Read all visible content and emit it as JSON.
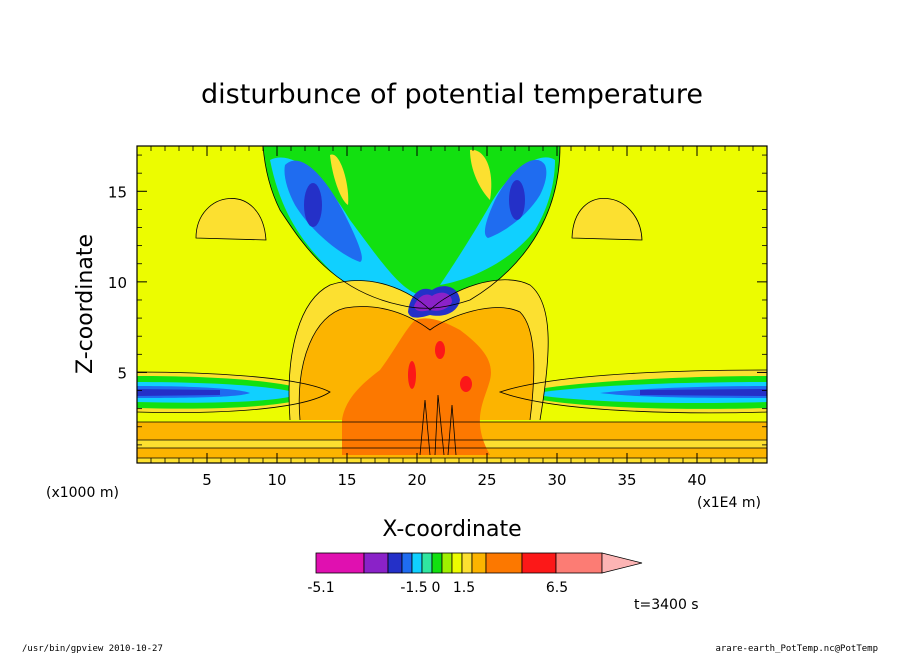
{
  "chart_data": {
    "type": "heatmap",
    "title": "disturbunce of potential temperature",
    "xlabel": "X-coordinate",
    "ylabel": "Z-coordinate",
    "x_units": "(x1000 m)",
    "x_multiplier": "(x1E4 m)",
    "xlim": [
      0,
      45
    ],
    "ylim": [
      0,
      17.5
    ],
    "xticks": [
      5,
      10,
      15,
      20,
      25,
      30,
      35,
      40
    ],
    "yticks": [
      5,
      10,
      15
    ],
    "time_label": "t=3400 s",
    "colorbar": {
      "tick_labels": [
        "-5.1",
        "-1.5",
        "0",
        "1.5",
        "6.5"
      ],
      "colors": [
        "#e010b0",
        "#8a22c8",
        "#2430c8",
        "#1f6cf0",
        "#10d0ff",
        "#30e6a0",
        "#12e010",
        "#a0f000",
        "#ecfc00",
        "#fce030",
        "#fcb400",
        "#fc7800",
        "#fc1818",
        "#fc7c74",
        "#fcb4b4"
      ]
    }
  },
  "footer": {
    "left": "/usr/bin/gpview   2010-10-27",
    "right": "arare-earth_PotTemp.nc@PotTemp"
  }
}
